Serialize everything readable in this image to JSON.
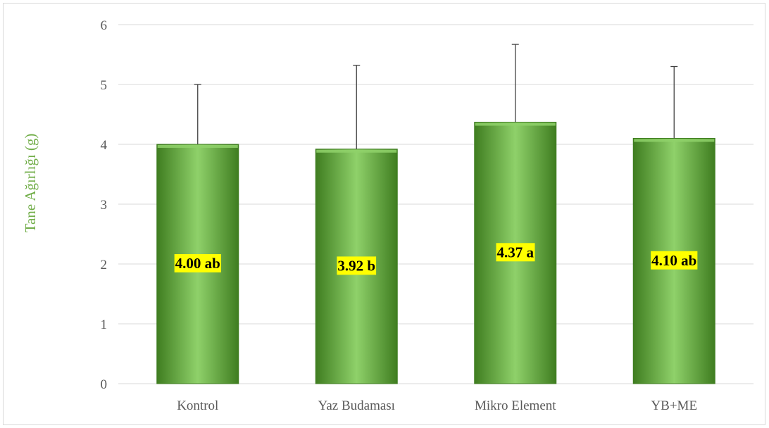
{
  "chart_data": {
    "type": "bar",
    "title": "",
    "xlabel": "",
    "ylabel": "Tane Ağırlığı (g)",
    "ylim": [
      0,
      6
    ],
    "yticks": [
      0,
      1,
      2,
      3,
      4,
      5,
      6
    ],
    "grid": true,
    "legend": "none",
    "categories": [
      "Kontrol",
      "Yaz Budaması",
      "Mikro Element",
      "YB+ME"
    ],
    "values": [
      4.0,
      3.92,
      4.37,
      4.1
    ],
    "error_upper": [
      1.0,
      1.4,
      1.3,
      1.2
    ],
    "data_labels": [
      "4.00 ab",
      "3.92 b",
      "4.37 a",
      "4.10 ab"
    ],
    "colors": {
      "bar_light": "#8fd16a",
      "bar_mid": "#6cb33f",
      "bar_dark": "#3f7d20",
      "label_highlight": "#ffff00",
      "ylabel": "#70ad47",
      "grid": "#d9d9d9",
      "axis_text": "#595959"
    }
  }
}
